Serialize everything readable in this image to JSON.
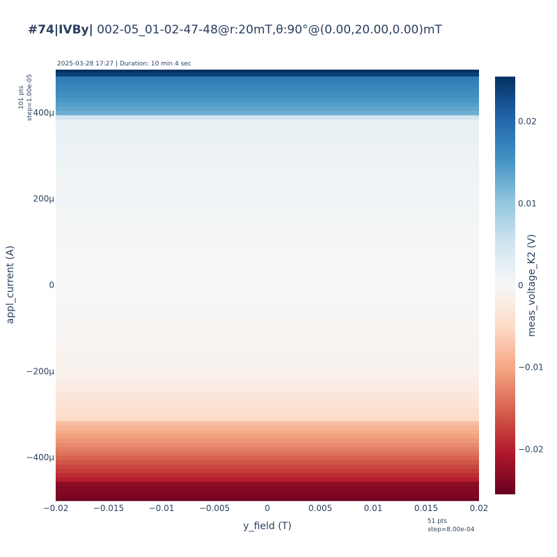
{
  "chart_data": {
    "type": "heatmap",
    "title_bold": "#74|IVBy|",
    "title_rest": " 002-05_01-02-47-48@r:20mT,θ:90°@(0.00,20.00,0.00)mT",
    "subtitle": "2025-03-28 17:27 | Duration: 10 min 4 sec",
    "xlabel": "y_field (T)",
    "ylabel": "appl_current (A)",
    "colorbar_label": "meas_voltage_K2 (V)",
    "x_ticks": [
      {
        "value": -0.02,
        "label": "−0.02"
      },
      {
        "value": -0.015,
        "label": "−0.015"
      },
      {
        "value": -0.01,
        "label": "−0.01"
      },
      {
        "value": -0.005,
        "label": "−0.005"
      },
      {
        "value": 0,
        "label": "0"
      },
      {
        "value": 0.005,
        "label": "0.005"
      },
      {
        "value": 0.01,
        "label": "0.01"
      },
      {
        "value": 0.015,
        "label": "0.015"
      },
      {
        "value": 0.02,
        "label": "0.02"
      }
    ],
    "y_ticks": [
      {
        "value": 0.0004,
        "label": "400μ"
      },
      {
        "value": 0.0002,
        "label": "200μ"
      },
      {
        "value": 0,
        "label": "0"
      },
      {
        "value": -0.0002,
        "label": "−200μ"
      },
      {
        "value": -0.0004,
        "label": "−400μ"
      }
    ],
    "colorbar_ticks": [
      {
        "value": 0.02,
        "label": "0.02"
      },
      {
        "value": 0.01,
        "label": "0.01"
      },
      {
        "value": 0,
        "label": "0"
      },
      {
        "value": -0.01,
        "label": "−0.01"
      },
      {
        "value": -0.02,
        "label": "−0.02"
      }
    ],
    "x_note": [
      "51 pts",
      "step=8.00e-04"
    ],
    "y_note": [
      "101 pts",
      "step=1.00e-05"
    ],
    "x_range": [
      -0.02,
      0.02
    ],
    "y_range": [
      -0.0005,
      0.0005
    ],
    "z_range": [
      -0.0255,
      0.0255
    ],
    "colorscale": "RdBu",
    "colorscale_colors": [
      "#67001f",
      "#b2182b",
      "#d6604d",
      "#f4a582",
      "#fddbc7",
      "#f7f7f7",
      "#d1e5f0",
      "#92c5de",
      "#4393c3",
      "#2166ac",
      "#053061"
    ],
    "x_points": 51,
    "y_points": 101,
    "x_step": 0.0008,
    "y_step": 1e-05,
    "profile_current": [
      -0.0005,
      -0.00049,
      -0.00046,
      -0.00045,
      -0.00042,
      -0.00038,
      -0.00032,
      -0.00031,
      -0.0002,
      0,
      0.0002,
      0.00038,
      0.00039,
      0.0004,
      0.00043,
      0.00048,
      0.00049,
      0.0005
    ],
    "profile_voltage": [
      -0.0255,
      -0.024,
      -0.023,
      -0.02,
      -0.017,
      -0.013,
      -0.008,
      -0.005,
      -0.001,
      0,
      0.0008,
      0.002,
      0.005,
      0.0125,
      0.015,
      0.018,
      0.024,
      0.0255
    ]
  }
}
